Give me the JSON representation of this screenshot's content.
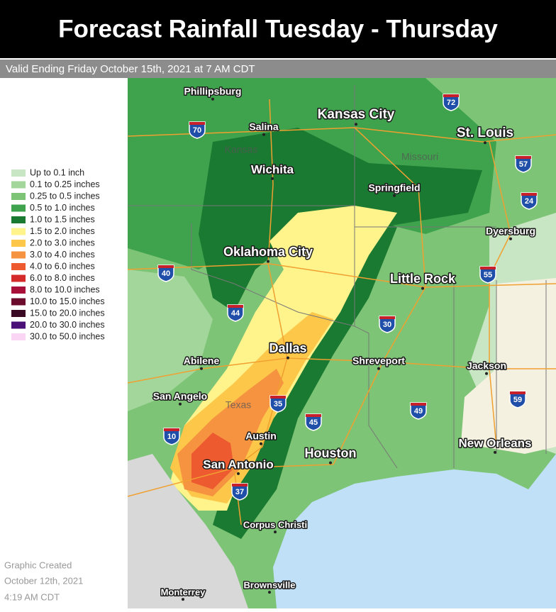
{
  "header": {
    "title": "Forecast Rainfall Tuesday - Thursday",
    "subtitle": "Valid Ending Friday October 15th, 2021 at 7 AM CDT"
  },
  "legend": [
    {
      "label": "Up to 0.1 inch",
      "color": "#c8e6c3"
    },
    {
      "label": "0.1 to 0.25 inches",
      "color": "#a3d69b"
    },
    {
      "label": "0.25 to 0.5 inches",
      "color": "#7dc476"
    },
    {
      "label": "0.5 to 1.0 inches",
      "color": "#3fa34d"
    },
    {
      "label": "1.0 to 1.5 inches",
      "color": "#1b7a32"
    },
    {
      "label": "1.5 to 2.0 inches",
      "color": "#fff38c"
    },
    {
      "label": "2.0 to 3.0 inches",
      "color": "#fdc849"
    },
    {
      "label": "3.0 to 4.0 inches",
      "color": "#f69341"
    },
    {
      "label": "4.0 to 6.0 inches",
      "color": "#ee5a30"
    },
    {
      "label": "6.0 to 8.0 inches",
      "color": "#d42a2a"
    },
    {
      "label": "8.0 to 10.0 inches",
      "color": "#a8103a"
    },
    {
      "label": "10.0 to 15.0 inches",
      "color": "#6c0b2c"
    },
    {
      "label": "15.0 to 20.0 inches",
      "color": "#3a0a24"
    },
    {
      "label": "20.0 to 30.0 inches",
      "color": "#4a1078"
    },
    {
      "label": "30.0 to 50.0 inches",
      "color": "#fbd6f4"
    }
  ],
  "map": {
    "states": [
      "Kansas",
      "Missouri",
      "Texas"
    ],
    "cities": [
      "Phillipsburg",
      "Kansas City",
      "Salina",
      "St. Louis",
      "Wichita",
      "Springfield",
      "Dyersburg",
      "Oklahoma City",
      "Little Rock",
      "Dallas",
      "Abilene",
      "Shreveport",
      "Jackson",
      "San Angelo",
      "Austin",
      "New Orleans",
      "Houston",
      "San Antonio",
      "Corpus Christi",
      "Brownsville",
      "Monterrey"
    ],
    "interstates": [
      "72",
      "70",
      "57",
      "24",
      "40",
      "55",
      "44",
      "30",
      "35",
      "59",
      "49",
      "45",
      "10",
      "37"
    ]
  },
  "footer": [
    "Graphic Created",
    "October 12th, 2021",
    "4:19 AM CDT"
  ]
}
